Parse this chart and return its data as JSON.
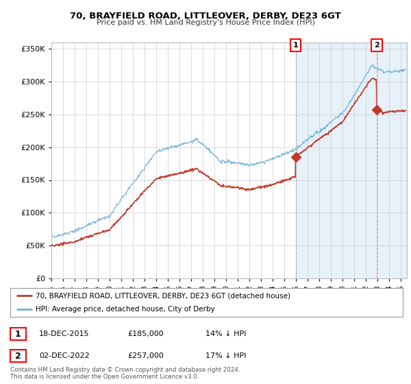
{
  "title": "70, BRAYFIELD ROAD, LITTLEOVER, DERBY, DE23 6GT",
  "subtitle": "Price paid vs. HM Land Registry's House Price Index (HPI)",
  "ylim": [
    0,
    360000
  ],
  "xlim_start": 1995.0,
  "xlim_end": 2025.5,
  "sale1_date": 2015.96,
  "sale1_price": 185000,
  "sale2_date": 2022.92,
  "sale2_price": 257000,
  "hpi_color": "#6baed6",
  "hpi_fill_color": "#d6e8f5",
  "price_color": "#c0392b",
  "vline1_color": "#aaaaaa",
  "vline2_color": "#e8a0a0",
  "legend1": "70, BRAYFIELD ROAD, LITTLEOVER, DERBY, DE23 6GT (detached house)",
  "legend2": "HPI: Average price, detached house, City of Derby",
  "annotation1_date": "18-DEC-2015",
  "annotation1_price": "£185,000",
  "annotation1_hpi": "14% ↓ HPI",
  "annotation2_date": "02-DEC-2022",
  "annotation2_price": "£257,000",
  "annotation2_hpi": "17% ↓ HPI",
  "footer": "Contains HM Land Registry data © Crown copyright and database right 2024.\nThis data is licensed under the Open Government Licence v3.0.",
  "background_color": "#ffffff",
  "grid_color": "#cccccc"
}
